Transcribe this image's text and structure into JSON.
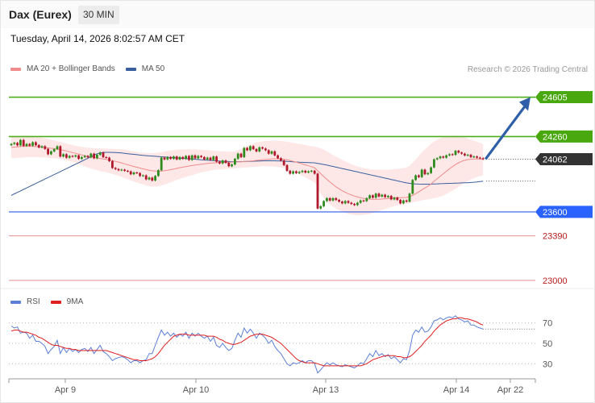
{
  "header": {
    "instrument": "Dax (Eurex)",
    "timeframe": "30 MIN",
    "timestamp": "Tuesday, April 14, 2026 8:02:57 AM CET",
    "credit": "Research © 2026 Trading Central"
  },
  "legend": [
    {
      "label": "MA 20 + Bollinger Bands",
      "color": "#f28b8b"
    },
    {
      "label": "MA 50",
      "color": "#3a5f9e"
    }
  ],
  "rsi_legend": [
    {
      "label": "RSI",
      "color": "#5b7fd6"
    },
    {
      "label": "9MA",
      "color": "#e02020"
    }
  ],
  "colors": {
    "up": "#2e8b1e",
    "down": "#b0192c",
    "resistance": "#4caf1a",
    "support": "#2b5ce6",
    "target": "#e57373",
    "last": "#333333",
    "arrow": "#2f5fa8"
  },
  "chart_data": [
    {
      "type": "candlestick",
      "name": "price",
      "ylim": [
        22950,
        24750
      ],
      "x_labels": [
        "Apr 9",
        "Apr 10",
        "Apr 13",
        "Apr 14",
        "Apr 22"
      ],
      "levels": [
        {
          "value": 24605,
          "label": "24605",
          "kind": "resistance"
        },
        {
          "value": 24260,
          "label": "24260",
          "kind": "resistance"
        },
        {
          "value": 24062,
          "label": "24062",
          "kind": "last"
        },
        {
          "value": 23600,
          "label": "23600",
          "kind": "support"
        },
        {
          "value": 23390,
          "label": "23390",
          "kind": "target"
        },
        {
          "value": 23000,
          "label": "23000",
          "kind": "target"
        }
      ],
      "projection": {
        "from": 24062,
        "to": 24605
      },
      "ma50_end": 23870,
      "close": [
        24195,
        24205,
        24183,
        24230,
        24178,
        24195,
        24180,
        24210,
        24185,
        24165,
        24175,
        24152,
        24105,
        24130,
        24150,
        24175,
        24085,
        24105,
        24075,
        24090,
        24085,
        24095,
        24065,
        24080,
        24090,
        24078,
        24110,
        24070,
        24100,
        24120,
        24080,
        24075,
        24045,
        23985,
        23975,
        23965,
        23970,
        23960,
        23955,
        23930,
        23945,
        23940,
        23915,
        23920,
        23885,
        23900,
        23875,
        23915,
        23965,
        24075,
        24060,
        24080,
        24065,
        24085,
        24060,
        24080,
        24065,
        24090,
        24055,
        24095,
        24070,
        24090,
        24080,
        24060,
        24075,
        24055,
        24085,
        24040,
        24025,
        24050,
        24030,
        24000,
        24015,
        24065,
        24110,
        24080,
        24160,
        24140,
        24175,
        24150,
        24130,
        24165,
        24155,
        24140,
        24110,
        24130,
        24095,
        24070,
        24050,
        24010,
        23960,
        23935,
        23955,
        23940,
        23950,
        23960,
        23945,
        23955,
        23960,
        23935,
        23630,
        23650,
        23695,
        23720,
        23700,
        23720,
        23705,
        23690,
        23675,
        23695,
        23680,
        23670,
        23660,
        23680,
        23700,
        23695,
        23720,
        23745,
        23725,
        23760,
        23735,
        23750,
        23730,
        23740,
        23710,
        23725,
        23705,
        23675,
        23700,
        23690,
        23760,
        23880,
        23920,
        23905,
        23970,
        23930,
        23940,
        23990,
        24060,
        24070,
        24085,
        24075,
        24095,
        24105,
        24100,
        24135,
        24120,
        24110,
        24095,
        24100,
        24080,
        24085,
        24075,
        24070,
        24062
      ],
      "ma20": [
        24165,
        24168,
        24170,
        24173,
        24175,
        24176,
        24175,
        24174,
        24172,
        24170,
        24167,
        24164,
        24160,
        24157,
        24154,
        24150,
        24145,
        24140,
        24134,
        24127,
        24120,
        24113,
        24106,
        24099,
        24092,
        24086,
        24081,
        24076,
        24072,
        24068,
        24064,
        24060,
        24055,
        24049,
        24043,
        24036,
        24029,
        24021,
        24013,
        24005,
        23998,
        23991,
        23984,
        23977,
        23971,
        23965,
        23960,
        23958,
        23957,
        23958,
        23961,
        23965,
        23970,
        23975,
        23981,
        23987,
        23992,
        23997,
        24002,
        24006,
        24010,
        24014,
        24018,
        24021,
        24024,
        24027,
        24029,
        24031,
        24032,
        24033,
        24034,
        24035,
        24036,
        24037,
        24038,
        24039,
        24041,
        24043,
        24045,
        24048,
        24051,
        24054,
        24057,
        24059,
        24061,
        24063,
        24065,
        24065,
        24064,
        24061,
        24056,
        24050,
        24043,
        24036,
        24028,
        24020,
        24012,
        24004,
        23996,
        23987,
        23960,
        23935,
        23910,
        23885,
        23862,
        23840,
        23820,
        23802,
        23786,
        23772,
        23760,
        23749,
        23739,
        23731,
        23724,
        23719,
        23715,
        23712,
        23710,
        23710,
        23711,
        23713,
        23715,
        23718,
        23720,
        23722,
        23724,
        23725,
        23726,
        23727,
        23733,
        23745,
        23760,
        23775,
        23793,
        23810,
        23825,
        23845,
        23868,
        23890,
        23912,
        23934,
        23956,
        23977,
        23996,
        24015,
        24030,
        24043,
        24052,
        24058,
        24062,
        24064,
        24064,
        24063,
        24062
      ],
      "bb_upper": [
        24260,
        24262,
        24264,
        24266,
        24267,
        24268,
        24266,
        24264,
        24260,
        24256,
        24250,
        24244,
        24238,
        24232,
        24226,
        24220,
        24213,
        24206,
        24199,
        24192,
        24185,
        24180,
        24175,
        24170,
        24165,
        24162,
        24160,
        24158,
        24157,
        24156,
        24155,
        24154,
        24153,
        24152,
        24151,
        24150,
        24148,
        24145,
        24141,
        24136,
        24130,
        24125,
        24120,
        24118,
        24116,
        24115,
        24115,
        24117,
        24120,
        24124,
        24129,
        24134,
        24138,
        24141,
        24144,
        24146,
        24147,
        24148,
        24148,
        24148,
        24147,
        24146,
        24144,
        24142,
        24140,
        24138,
        24136,
        24134,
        24132,
        24130,
        24129,
        24128,
        24128,
        24130,
        24140,
        24150,
        24165,
        24178,
        24190,
        24200,
        24208,
        24214,
        24218,
        24221,
        24223,
        24224,
        24224,
        24223,
        24221,
        24218,
        24214,
        24210,
        24205,
        24200,
        24195,
        24190,
        24185,
        24180,
        24176,
        24172,
        24165,
        24155,
        24143,
        24130,
        24115,
        24100,
        24085,
        24070,
        24056,
        24042,
        24030,
        24018,
        24008,
        23999,
        23991,
        23984,
        23979,
        23975,
        23972,
        23970,
        23969,
        23969,
        23969,
        23970,
        23972,
        23974,
        23977,
        23980,
        23984,
        23990,
        24005,
        24030,
        24060,
        24090,
        24120,
        24148,
        24172,
        24195,
        24215,
        24232,
        24245,
        24255,
        24262,
        24266,
        24268,
        24267,
        24264,
        24259,
        24252,
        24244,
        24234,
        24224,
        24214,
        24204,
        24194
      ],
      "bb_lower": [
        24070,
        24072,
        24074,
        24076,
        24078,
        24080,
        24080,
        24080,
        24080,
        24079,
        24078,
        24076,
        24074,
        24072,
        24070,
        24067,
        24063,
        24058,
        24052,
        24045,
        24037,
        24028,
        24018,
        24008,
        23998,
        23988,
        23980,
        23972,
        23965,
        23958,
        23952,
        23946,
        23940,
        23932,
        23924,
        23915,
        23906,
        23896,
        23886,
        23876,
        23866,
        23857,
        23848,
        23840,
        23832,
        23826,
        23822,
        23822,
        23825,
        23832,
        23840,
        23850,
        23860,
        23870,
        23880,
        23890,
        23898,
        23906,
        23914,
        23922,
        23930,
        23938,
        23946,
        23952,
        23958,
        23963,
        23967,
        23970,
        23972,
        23974,
        23976,
        23978,
        23980,
        23982,
        23984,
        23986,
        23988,
        23990,
        23992,
        23994,
        23996,
        23998,
        24000,
        24000,
        23999,
        23998,
        23996,
        23993,
        23989,
        23983,
        23975,
        23966,
        23955,
        23943,
        23930,
        23916,
        23902,
        23888,
        23874,
        23860,
        23810,
        23760,
        23720,
        23690,
        23665,
        23645,
        23628,
        23614,
        23602,
        23592,
        23584,
        23578,
        23574,
        23572,
        23572,
        23574,
        23578,
        23583,
        23590,
        23598,
        23607,
        23616,
        23625,
        23634,
        23642,
        23650,
        23657,
        23663,
        23668,
        23672,
        23678,
        23684,
        23690,
        23695,
        23700,
        23705,
        23710,
        23715,
        23720,
        23726,
        23734,
        23744,
        23756,
        23770,
        23786,
        23803,
        23820,
        23838,
        23855,
        23870,
        23884,
        23896,
        23906,
        23914,
        23920
      ],
      "ma50": [
        23745,
        23758,
        23771,
        23784,
        23797,
        23810,
        23823,
        23836,
        23849,
        23862,
        23875,
        23888,
        23901,
        23914,
        23927,
        23940,
        23953,
        23966,
        23979,
        23992,
        24005,
        24018,
        24031,
        24044,
        24057,
        24070,
        24083,
        24096,
        24109,
        24116,
        24120,
        24122,
        24122,
        24121,
        24120,
        24118,
        24116,
        24113,
        24110,
        24107,
        24104,
        24101,
        24098,
        24095,
        24093,
        24091,
        24089,
        24087,
        24085,
        24083,
        24081,
        24079,
        24077,
        24075,
        24073,
        24071,
        24069,
        24067,
        24065,
        24063,
        24061,
        24059,
        24057,
        24055,
        24053,
        24051,
        24049,
        24047,
        24045,
        24043,
        24042,
        24041,
        24040,
        24040,
        24040,
        24040,
        24041,
        24042,
        24043,
        24044,
        24045,
        24046,
        24047,
        24048,
        24048,
        24048,
        24048,
        24047,
        24046,
        24045,
        24043,
        24041,
        24039,
        24037,
        24035,
        24034,
        24033,
        24032,
        24031,
        24030,
        24025,
        24020,
        24015,
        24010,
        24004,
        23998,
        23992,
        23986,
        23980,
        23974,
        23968,
        23962,
        23956,
        23950,
        23944,
        23938,
        23932,
        23926,
        23920,
        23914,
        23908,
        23902,
        23896,
        23890,
        23884,
        23878,
        23872,
        23866,
        23860,
        23854,
        23850,
        23847,
        23845,
        23844,
        23843,
        23843,
        23843,
        23844,
        23845,
        23846,
        23847,
        23848,
        23849,
        23850,
        23851,
        23852,
        23853,
        23854,
        23855,
        23856,
        23858,
        23860,
        23863,
        23866,
        23870
      ]
    },
    {
      "type": "line",
      "name": "rsi",
      "ylim": [
        20,
        80
      ],
      "ticks": [
        {
          "value": 70,
          "label": "70"
        },
        {
          "value": 50,
          "label": "50"
        },
        {
          "value": 30,
          "label": "30"
        }
      ],
      "rsi": [
        67,
        65,
        66,
        60,
        61,
        60,
        55,
        58,
        52,
        52,
        50,
        47,
        40,
        44,
        47,
        53,
        40,
        46,
        41,
        45,
        42,
        44,
        41,
        44,
        45,
        42,
        46,
        40,
        44,
        48,
        42,
        40,
        37,
        33,
        35,
        36,
        37,
        36,
        34,
        31,
        33,
        33,
        31,
        33,
        34,
        40,
        40,
        48,
        56,
        63,
        58,
        61,
        57,
        60,
        56,
        59,
        57,
        61,
        55,
        60,
        57,
        60,
        57,
        55,
        57,
        52,
        56,
        48,
        46,
        50,
        46,
        43,
        45,
        53,
        60,
        56,
        65,
        60,
        64,
        60,
        55,
        60,
        58,
        55,
        50,
        53,
        47,
        43,
        40,
        35,
        30,
        28,
        31,
        30,
        31,
        33,
        31,
        33,
        33,
        30,
        21,
        24,
        28,
        31,
        29,
        31,
        29,
        28,
        27,
        29,
        28,
        27,
        26,
        28,
        31,
        30,
        35,
        40,
        37,
        43,
        38,
        40,
        37,
        39,
        35,
        37,
        34,
        31,
        35,
        34,
        43,
        58,
        63,
        61,
        66,
        61,
        62,
        66,
        72,
        73,
        75,
        73,
        75,
        76,
        75,
        77,
        74,
        73,
        71,
        72,
        68,
        68,
        66,
        65,
        64
      ],
      "ma9": [
        62,
        63,
        63,
        62,
        61,
        61,
        60,
        59,
        58,
        56,
        55,
        53,
        51,
        49,
        48,
        48,
        47,
        46,
        45,
        45,
        44,
        44,
        43,
        43,
        43,
        43,
        43,
        43,
        43,
        43,
        43,
        43,
        42,
        41,
        40,
        39,
        38,
        37,
        36,
        35,
        34,
        34,
        33,
        33,
        33,
        34,
        35,
        37,
        40,
        44,
        48,
        51,
        54,
        57,
        58,
        59,
        59,
        59,
        58,
        58,
        58,
        58,
        58,
        58,
        57,
        57,
        57,
        56,
        54,
        53,
        51,
        50,
        49,
        49,
        50,
        51,
        53,
        55,
        57,
        58,
        59,
        59,
        59,
        58,
        57,
        56,
        54,
        52,
        50,
        47,
        44,
        41,
        38,
        35,
        33,
        32,
        31,
        31,
        31,
        31,
        30,
        29,
        28,
        28,
        28,
        28,
        28,
        28,
        28,
        28,
        28,
        28,
        28,
        28,
        28,
        29,
        30,
        32,
        34,
        35,
        36,
        37,
        38,
        38,
        38,
        38,
        37,
        37,
        36,
        36,
        37,
        39,
        42,
        45,
        48,
        52,
        55,
        58,
        62,
        65,
        68,
        70,
        72,
        73,
        74,
        74,
        75,
        75,
        74,
        74,
        73,
        72,
        71,
        69,
        68
      ]
    }
  ]
}
